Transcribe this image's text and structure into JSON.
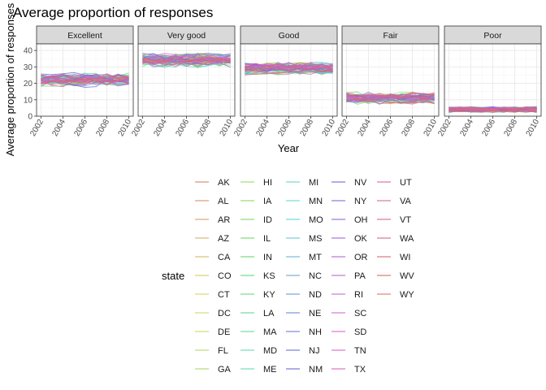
{
  "chart_data": {
    "type": "line",
    "title": "Average proportion of responses",
    "xlabel": "Year",
    "ylabel": "Average proportion of responses",
    "x": [
      2002,
      2003,
      2004,
      2005,
      2006,
      2007,
      2008,
      2009,
      2010
    ],
    "x_tick_labels": [
      "2002",
      "2004",
      "2006",
      "2008",
      "2010"
    ],
    "y_tick_labels": [
      "0",
      "10",
      "20",
      "30",
      "40"
    ],
    "ylim": [
      0,
      44
    ],
    "grid": true,
    "legend_title": "state",
    "legend_position": "bottom",
    "facets": [
      {
        "label": "Excellent",
        "center": 22,
        "spread": 3.5
      },
      {
        "label": "Very good",
        "center": 34,
        "spread": 3.5
      },
      {
        "label": "Good",
        "center": 29,
        "spread": 3
      },
      {
        "label": "Fair",
        "center": 11,
        "spread": 3
      },
      {
        "label": "Poor",
        "center": 4,
        "spread": 1.5
      }
    ],
    "states": [
      "AK",
      "AL",
      "AR",
      "AZ",
      "CA",
      "CO",
      "CT",
      "DC",
      "DE",
      "FL",
      "GA",
      "HI",
      "IA",
      "ID",
      "IL",
      "IN",
      "KS",
      "KY",
      "LA",
      "MA",
      "MD",
      "ME",
      "MI",
      "MN",
      "MO",
      "MS",
      "MT",
      "NC",
      "ND",
      "NE",
      "NH",
      "NJ",
      "NM",
      "NV",
      "NY",
      "OH",
      "OK",
      "OR",
      "PA",
      "RI",
      "SC",
      "SD",
      "TN",
      "TX",
      "UT",
      "VA",
      "VT",
      "WA",
      "WI",
      "WV",
      "WY"
    ]
  }
}
